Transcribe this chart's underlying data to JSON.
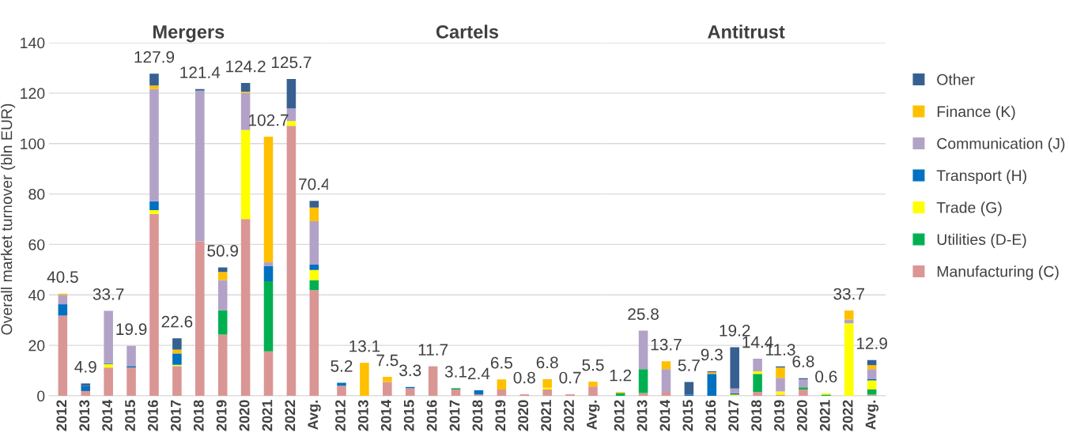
{
  "chart_data": [
    {
      "type": "bar",
      "title": "Mergers",
      "ylabel": "Overall market turnover (bln EUR)",
      "stacked": true,
      "grid": "y",
      "ylim": [
        0,
        140
      ],
      "yticks": [
        0,
        20,
        40,
        60,
        80,
        100,
        120,
        140
      ],
      "categories": [
        "2012",
        "2013",
        "2014",
        "2015",
        "2016",
        "2017",
        "2018",
        "2019",
        "2020",
        "2021",
        "2022",
        "Avg."
      ],
      "series": [
        {
          "color": "#da9694",
          "values": [
            31.8,
            1.9,
            11.2,
            11.2,
            72.1,
            11.8,
            61.2,
            24.3,
            70.1,
            17.6,
            107.0,
            41.9
          ]
        },
        {
          "color": "#00b050",
          "values": [
            null,
            null,
            null,
            null,
            null,
            null,
            null,
            9.6,
            null,
            27.8,
            null,
            4.0
          ]
        },
        {
          "color": "#ffff00",
          "values": [
            null,
            null,
            1.4,
            null,
            1.5,
            0.5,
            null,
            null,
            35.3,
            null,
            1.9,
            4.0
          ]
        },
        {
          "color": "#0070c0",
          "values": [
            4.5,
            2.1,
            0.3,
            0.6,
            3.5,
            4.5,
            null,
            null,
            null,
            6.1,
            null,
            2.1
          ]
        },
        {
          "color": "#b3a2c7",
          "values": [
            3.7,
            null,
            20.8,
            8.0,
            44.5,
            null,
            59.8,
            12.0,
            14.7,
            1.4,
            5.0,
            17.2
          ]
        },
        {
          "color": "#ffc000",
          "values": [
            0.5,
            null,
            null,
            null,
            1.4,
            1.5,
            null,
            3.2,
            0.5,
            49.8,
            null,
            5.4
          ]
        },
        {
          "color": "#376092",
          "values": [
            null,
            0.9,
            null,
            null,
            4.7,
            4.5,
            0.6,
            1.8,
            3.4,
            null,
            11.7,
            2.7
          ]
        }
      ],
      "totals": [
        "40.5",
        "4.9",
        "33.7",
        "19.9",
        "127.9",
        "22.6",
        "121.4",
        "50.9",
        "124.2",
        "102.7",
        "125.7",
        null
      ],
      "annotations": [
        "70.4"
      ]
    },
    {
      "type": "bar",
      "title": "Cartels",
      "stacked": true,
      "grid": "y",
      "ylim": [
        0,
        140
      ],
      "yticks": [
        0,
        20,
        40,
        60,
        80,
        100,
        120,
        140
      ],
      "tick_labels": "x",
      "categories": [
        "2012",
        "2013",
        "2014",
        "2015",
        "2016",
        "2017",
        "2018",
        "2019",
        "2020",
        "2021",
        "2022",
        "Avg."
      ],
      "series": [
        {
          "color": "#da9694",
          "values": [
            4.0,
            null,
            5.5,
            3.0,
            11.7,
            2.5,
            0.5,
            2.5,
            0.6,
            2.5,
            0.6,
            3.7
          ]
        },
        {
          "color": "#00b050",
          "values": [
            null,
            null,
            null,
            null,
            null,
            0.5,
            null,
            null,
            null,
            null,
            null,
            null
          ]
        },
        {
          "color": "#ffff00",
          "values": [
            null,
            null,
            null,
            null,
            null,
            null,
            null,
            null,
            null,
            0.7,
            null,
            null
          ]
        },
        {
          "color": "#0070c0",
          "values": [
            1.2,
            null,
            null,
            0.5,
            null,
            null,
            1.7,
            null,
            null,
            null,
            null,
            null
          ]
        },
        {
          "color": "#b3a2c7",
          "values": [
            null,
            null,
            null,
            null,
            null,
            null,
            null,
            null,
            null,
            null,
            null,
            null
          ]
        },
        {
          "color": "#ffc000",
          "values": [
            null,
            13.1,
            2.0,
            null,
            null,
            null,
            null,
            4.0,
            null,
            3.4,
            null,
            1.9
          ]
        },
        {
          "color": "#376092",
          "values": [
            null,
            null,
            null,
            null,
            null,
            null,
            null,
            null,
            null,
            null,
            null,
            null
          ]
        }
      ],
      "totals": [
        "5.2",
        "13.1",
        "7.5",
        "3.3",
        "11.7",
        "3.1",
        "2.4",
        "6.5",
        "0.8",
        "6.8",
        "0.7",
        "5.5"
      ]
    },
    {
      "type": "bar",
      "title": "Antitrust",
      "stacked": true,
      "grid": "y",
      "ylim": [
        0,
        140
      ],
      "yticks": [
        0,
        20,
        40,
        60,
        80,
        100,
        120,
        140
      ],
      "tick_labels": "x",
      "legend": "right",
      "categories": [
        "2012",
        "2013",
        "2014",
        "2015",
        "2016",
        "2017",
        "2018",
        "2019",
        "2020",
        "2021",
        "2022",
        "Avg."
      ],
      "series": [
        {
          "name": "Manufacturing (C)",
          "color": "#da9694",
          "values": [
            null,
            1.1,
            1.6,
            null,
            null,
            null,
            1.6,
            0.5,
            2.5,
            null,
            null,
            0.5
          ]
        },
        {
          "name": "Utilities (D-E)",
          "color": "#00b050",
          "values": [
            1.1,
            9.5,
            null,
            null,
            null,
            null,
            7.1,
            null,
            0.9,
            0.5,
            null,
            2.0
          ]
        },
        {
          "name": "Trade (G)",
          "color": "#ffff00",
          "values": [
            null,
            null,
            null,
            null,
            null,
            0.5,
            1.0,
            1.2,
            null,
            0.5,
            28.7,
            3.6
          ]
        },
        {
          "name": "Transport (H)",
          "color": "#0070c0",
          "values": [
            null,
            null,
            null,
            0.5,
            8.7,
            0.5,
            null,
            null,
            null,
            null,
            null,
            0.5
          ]
        },
        {
          "name": "Communication (J)",
          "color": "#b3a2c7",
          "values": [
            null,
            15.2,
            9.0,
            null,
            null,
            1.9,
            5.0,
            5.4,
            3.2,
            null,
            1.5,
            4.0
          ]
        },
        {
          "name": "Finance (K)",
          "color": "#ffc000",
          "values": [
            0.4,
            null,
            3.1,
            null,
            0.6,
            null,
            null,
            4.1,
            null,
            null,
            3.6,
            1.5
          ]
        },
        {
          "name": "Other",
          "color": "#376092",
          "values": [
            null,
            null,
            null,
            5.0,
            0.4,
            16.4,
            null,
            0.5,
            0.4,
            null,
            null,
            2.1
          ]
        }
      ],
      "totals": [
        "1.2",
        "25.8",
        "13.7",
        "5.7",
        "9.3",
        "19.2",
        "14.4",
        "11.3",
        "6.8",
        "0.6",
        "33.7",
        null
      ],
      "annotations": [
        "12.9"
      ]
    }
  ]
}
